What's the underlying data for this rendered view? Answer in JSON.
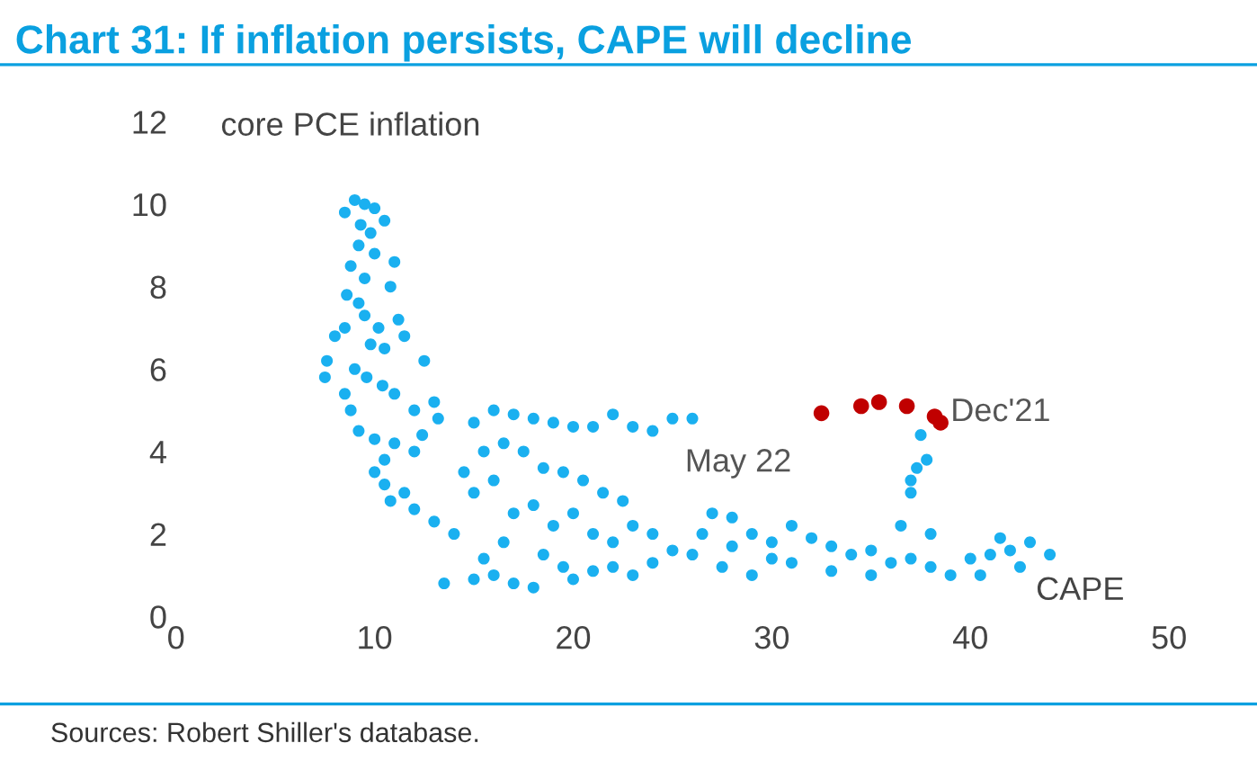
{
  "chart_data": {
    "type": "scatter",
    "title": "Chart 31: If inflation persists, CAPE will decline",
    "xlabel": "CAPE",
    "ylabel": "core PCE inflation",
    "xlim": [
      0,
      50
    ],
    "ylim": [
      0,
      12
    ],
    "xticks": [
      0,
      10,
      20,
      30,
      40,
      50
    ],
    "yticks": [
      0,
      2,
      4,
      6,
      8,
      10,
      12
    ],
    "grid": false,
    "marker": "circle",
    "annotations": [
      {
        "text": "May 22",
        "x": 32.5,
        "y": 4.93
      },
      {
        "text": "Dec'21",
        "x": 38.5,
        "y": 4.7
      },
      "Sources: Robert Shiller's database."
    ],
    "series": [
      {
        "color": "#1ab0f0",
        "x": [
          8.5,
          9,
          9.5,
          10,
          9.3,
          9.8,
          10.5,
          9.2,
          10,
          11,
          8.8,
          9.5,
          10.8,
          8.6,
          9.2,
          11.2,
          9.5,
          10.2,
          8.5,
          11.5,
          9.8,
          10.5,
          8.0,
          7.6,
          7.5,
          9.0,
          9.6,
          10.4,
          11,
          12.5,
          12.0,
          13,
          13.2,
          12.4,
          8.8,
          9.2,
          10,
          11,
          12,
          8.5,
          10.5,
          10.5,
          10.8,
          10,
          11.5,
          12,
          13,
          14,
          15,
          16,
          17,
          18,
          19,
          20,
          21,
          22,
          23,
          24,
          25,
          26,
          15.5,
          16.5,
          17.5,
          18.5,
          19.5,
          20.5,
          21.5,
          22.5,
          14.5,
          15,
          16,
          17,
          18,
          19,
          20,
          21,
          22,
          23,
          24,
          25,
          26,
          22,
          23,
          24,
          21,
          20,
          13.5,
          15,
          16,
          17,
          18,
          18.5,
          19.5,
          16.5,
          15.5,
          27,
          28,
          29,
          30,
          31,
          32,
          33,
          34,
          35,
          27.5,
          29,
          31,
          33,
          35,
          36,
          37,
          38,
          39,
          28,
          30,
          26.5,
          40,
          41,
          42,
          43,
          44,
          42.5,
          41.5,
          40.5,
          37,
          37.3,
          37.8,
          37.5,
          37,
          36.5,
          38
        ],
        "values": [
          9.8,
          10.1,
          10,
          9.9,
          9.5,
          9.3,
          9.6,
          9.0,
          8.8,
          8.6,
          8.5,
          8.2,
          8.0,
          7.8,
          7.6,
          7.2,
          7.3,
          7.0,
          7.0,
          6.8,
          6.6,
          6.5,
          6.8,
          6.2,
          5.8,
          6.0,
          5.8,
          5.6,
          5.4,
          6.2,
          5.0,
          5.2,
          4.8,
          4.4,
          5.0,
          4.5,
          4.3,
          4.2,
          4.0,
          5.4,
          3.8,
          3.2,
          2.8,
          3.5,
          3.0,
          2.6,
          2.3,
          2.0,
          4.7,
          5.0,
          4.9,
          4.8,
          4.7,
          4.6,
          4.6,
          4.9,
          4.6,
          4.5,
          4.8,
          4.8,
          4.0,
          4.2,
          4.0,
          3.6,
          3.5,
          3.3,
          3.0,
          2.8,
          3.5,
          3.0,
          3.3,
          2.5,
          2.7,
          2.2,
          2.5,
          2.0,
          1.8,
          2.2,
          2.0,
          1.6,
          1.5,
          1.2,
          1.0,
          1.3,
          1.1,
          0.9,
          0.8,
          0.9,
          1.0,
          0.8,
          0.7,
          1.5,
          1.2,
          1.8,
          1.4,
          2.5,
          2.4,
          2.0,
          1.8,
          2.2,
          1.9,
          1.7,
          1.5,
          1.6,
          1.2,
          1.0,
          1.3,
          1.1,
          1.0,
          1.3,
          1.4,
          1.2,
          1.0,
          1.7,
          1.4,
          2.0,
          1.4,
          1.5,
          1.6,
          1.8,
          1.5,
          1.2,
          1.9,
          1.0,
          3.0,
          3.6,
          3.8,
          4.4,
          3.3,
          2.2,
          2.0
        ]
      },
      {
        "color": "#c00000",
        "x": [
          32.5,
          34.5,
          35.4,
          36.8,
          38.2,
          38.5
        ],
        "values": [
          4.93,
          5.1,
          5.2,
          5.1,
          4.85,
          4.7
        ]
      }
    ]
  }
}
